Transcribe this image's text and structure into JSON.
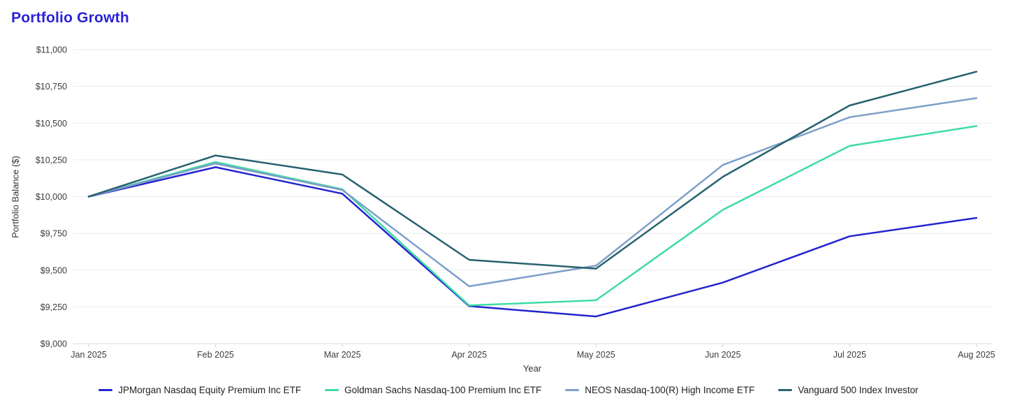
{
  "page": {
    "title": "Portfolio Growth",
    "title_color": "#2a23d6"
  },
  "chart_data": {
    "type": "line",
    "title": "Portfolio Growth",
    "xlabel": "Year",
    "ylabel": "Portfolio Balance ($)",
    "x": [
      "Jan 2025",
      "Feb 2025",
      "Mar 2025",
      "Apr 2025",
      "May 2025",
      "Jun 2025",
      "Jul 2025",
      "Aug 2025"
    ],
    "ylim": [
      9000,
      11000
    ],
    "ytick_step": 250,
    "ytick_prefix": "$",
    "grid": true,
    "legend_position": "bottom",
    "colors": {
      "gridline": "#e9ebee",
      "axis_line": "#d7dde4",
      "tick_mark": "#ccd6e2",
      "tick_text": "#3c3c3c"
    },
    "series": [
      {
        "name": "JPMorgan Nasdaq Equity Premium Inc ETF",
        "color": "#2424cf",
        "values": [
          10000,
          10200,
          10020,
          9255,
          9185,
          9415,
          9730,
          9855
        ]
      },
      {
        "name": "Goldman Sachs Nasdaq-100 Premium Inc ETF",
        "color": "#3edba4",
        "values": [
          10000,
          10235,
          10050,
          9260,
          9295,
          9910,
          10345,
          10480
        ]
      },
      {
        "name": "NEOS Nasdaq-100(R) High Income ETF",
        "color": "#7d9ec9",
        "values": [
          10000,
          10225,
          10045,
          9390,
          9530,
          10215,
          10540,
          10670
        ]
      },
      {
        "name": "Vanguard 500 Index Investor",
        "color": "#27626f",
        "values": [
          10000,
          10280,
          10150,
          9570,
          9510,
          10135,
          10620,
          10850
        ]
      }
    ]
  }
}
